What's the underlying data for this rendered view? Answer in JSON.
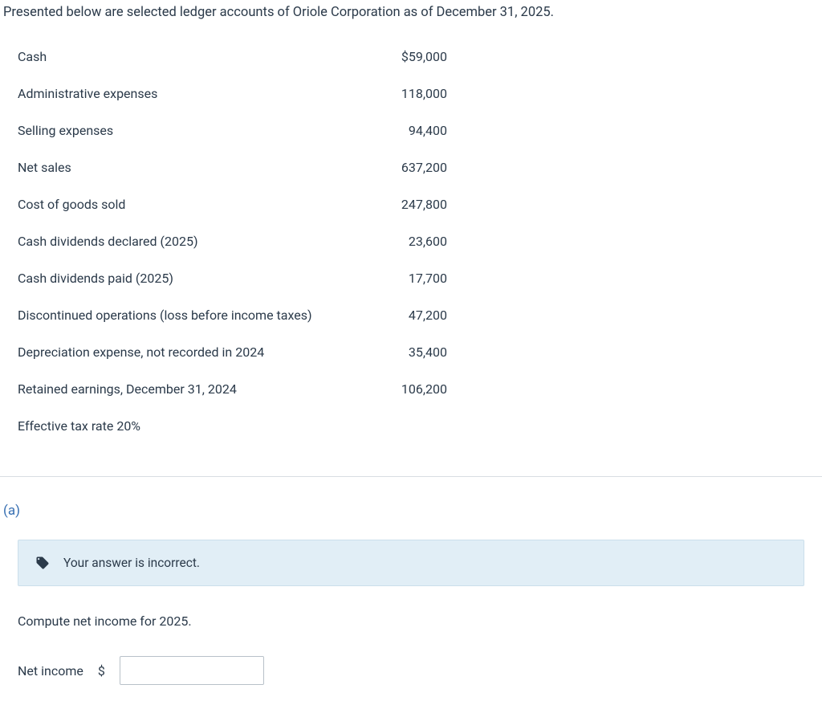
{
  "intro": "Presented below are selected ledger accounts of Oriole Corporation as of December 31, 2025.",
  "ledger": {
    "rows": [
      {
        "label": "Cash",
        "value": "$59,000"
      },
      {
        "label": "Administrative expenses",
        "value": "118,000"
      },
      {
        "label": "Selling expenses",
        "value": "94,400"
      },
      {
        "label": "Net sales",
        "value": "637,200"
      },
      {
        "label": "Cost of goods sold",
        "value": "247,800"
      },
      {
        "label": "Cash dividends declared (2025)",
        "value": "23,600"
      },
      {
        "label": "Cash dividends paid (2025)",
        "value": "17,700"
      },
      {
        "label": "Discontinued operations (loss before income taxes)",
        "value": "47,200"
      },
      {
        "label": "Depreciation expense, not recorded in 2024",
        "value": "35,400"
      },
      {
        "label": "Retained earnings, December 31, 2024",
        "value": "106,200"
      },
      {
        "label": "Effective tax rate 20%",
        "value": ""
      }
    ]
  },
  "part": {
    "label": "(a)"
  },
  "feedback": {
    "text": "Your answer is incorrect."
  },
  "prompt": "Compute net income for 2025.",
  "input": {
    "label": "Net income",
    "currency": "$",
    "value": ""
  },
  "colors": {
    "text": "#2b3a4a",
    "link": "#376fb2",
    "feedback_bg": "#e1eef6",
    "feedback_border": "#cbdfeb",
    "divider": "#d8dde2",
    "input_border": "#b8c1c9",
    "icon_fill": "#2b3a4a"
  }
}
